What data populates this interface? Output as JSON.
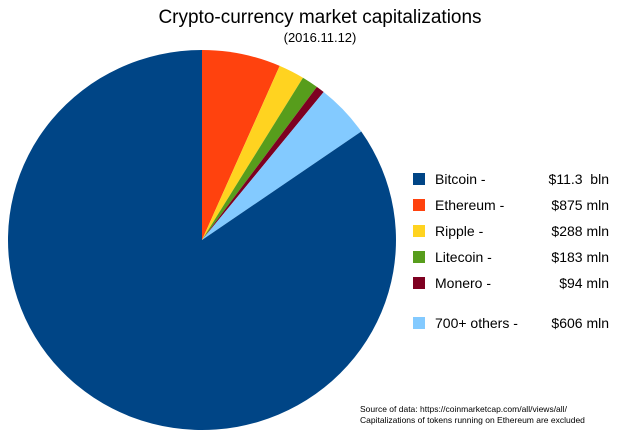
{
  "chart_data": {
    "type": "pie",
    "title": "Crypto-currency market capitalizations",
    "subtitle": "(2016.11.12)",
    "unit": "USD mln",
    "start_angle_deg": 0,
    "clockwise": true,
    "legend_position": "right",
    "slices": [
      {
        "name": "Bitcoin",
        "label": "Bitcoin -",
        "value_mln": 11300,
        "value_text": "$11.3  bln",
        "color": "#004586",
        "separated": false
      },
      {
        "name": "Ethereum",
        "label": "Ethereum -",
        "value_mln": 875,
        "value_text": "$875 mln",
        "color": "#ff420e",
        "separated": false
      },
      {
        "name": "Ripple",
        "label": "Ripple -",
        "value_mln": 288,
        "value_text": "$288 mln",
        "color": "#ffd320",
        "separated": false
      },
      {
        "name": "Litecoin",
        "label": "Litecoin -",
        "value_mln": 183,
        "value_text": "$183 mln",
        "color": "#579d1c",
        "separated": false
      },
      {
        "name": "Monero",
        "label": "Monero -",
        "value_mln": 94,
        "value_text": "$94 mln",
        "color": "#7e0021",
        "separated": false
      },
      {
        "name": "700+ others",
        "label": "700+ others -",
        "value_mln": 606,
        "value_text": "$606 mln",
        "color": "#83caff",
        "separated": true
      }
    ],
    "slice_draw_order": [
      "Ethereum",
      "Ripple",
      "Litecoin",
      "Monero",
      "700+ others",
      "Bitcoin"
    ],
    "source_note": {
      "line1": "Source of data: https://coinmarketcap.com/all/views/all/",
      "line2": "Capitalizations of tokens running on Ethereum are excluded"
    }
  }
}
